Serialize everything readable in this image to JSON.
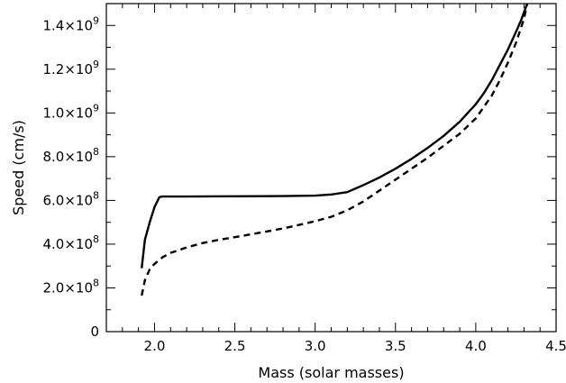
{
  "chart_data": {
    "type": "line",
    "title": "",
    "xlabel": "Mass (solar masses)",
    "ylabel": "Speed (cm/s)",
    "xlim": [
      1.7,
      4.5
    ],
    "ylim": [
      0,
      1500000000.0
    ],
    "grid": false,
    "legend": "none",
    "x_ticks": [
      {
        "value": 2.0,
        "label": "2.0"
      },
      {
        "value": 2.5,
        "label": "2.5"
      },
      {
        "value": 3.0,
        "label": "3.0"
      },
      {
        "value": 3.5,
        "label": "3.5"
      },
      {
        "value": 4.0,
        "label": "4.0"
      },
      {
        "value": 4.5,
        "label": "4.5"
      }
    ],
    "y_ticks": [
      {
        "value": 0,
        "mant": "0",
        "exp": ""
      },
      {
        "value": 200000000.0,
        "mant": "2.0×10",
        "exp": "8"
      },
      {
        "value": 400000000.0,
        "mant": "4.0×10",
        "exp": "8"
      },
      {
        "value": 600000000.0,
        "mant": "6.0×10",
        "exp": "8"
      },
      {
        "value": 800000000.0,
        "mant": "8.0×10",
        "exp": "8"
      },
      {
        "value": 1000000000.0,
        "mant": "1.0×10",
        "exp": "9"
      },
      {
        "value": 1200000000.0,
        "mant": "1.2×10",
        "exp": "9"
      },
      {
        "value": 1400000000.0,
        "mant": "1.4×10",
        "exp": "9"
      }
    ],
    "series": [
      {
        "style": "solid",
        "color": "#000000",
        "x": [
          1.92,
          1.94,
          1.97,
          2.0,
          2.03,
          2.05,
          2.2,
          2.5,
          2.8,
          3.0,
          3.1,
          3.2,
          3.3,
          3.4,
          3.5,
          3.6,
          3.7,
          3.8,
          3.9,
          4.0,
          4.05,
          4.1,
          4.15,
          4.2,
          4.25,
          4.28,
          4.3,
          4.32
        ],
        "y": [
          290000000.0,
          420000000.0,
          500000000.0,
          570000000.0,
          615000000.0,
          618000000.0,
          618000000.0,
          619000000.0,
          620000000.0,
          622000000.0,
          627000000.0,
          638000000.0,
          670000000.0,
          705000000.0,
          745000000.0,
          790000000.0,
          840000000.0,
          895000000.0,
          960000000.0,
          1040000000.0,
          1090000000.0,
          1150000000.0,
          1220000000.0,
          1290000000.0,
          1370000000.0,
          1420000000.0,
          1460000000.0,
          1500000000.0
        ]
      },
      {
        "style": "dashed",
        "color": "#000000",
        "x": [
          1.92,
          1.94,
          1.97,
          2.0,
          2.05,
          2.1,
          2.2,
          2.3,
          2.4,
          2.5,
          2.6,
          2.7,
          2.8,
          2.9,
          3.0,
          3.1,
          3.2,
          3.3,
          3.4,
          3.5,
          3.6,
          3.7,
          3.8,
          3.9,
          4.0,
          4.1,
          4.15,
          4.2,
          4.25,
          4.3,
          4.32
        ],
        "y": [
          165000000.0,
          235000000.0,
          285000000.0,
          310000000.0,
          340000000.0,
          360000000.0,
          385000000.0,
          405000000.0,
          420000000.0,
          432000000.0,
          445000000.0,
          458000000.0,
          472000000.0,
          488000000.0,
          505000000.0,
          525000000.0,
          555000000.0,
          595000000.0,
          645000000.0,
          695000000.0,
          745000000.0,
          795000000.0,
          850000000.0,
          905000000.0,
          975000000.0,
          1080000000.0,
          1150000000.0,
          1230000000.0,
          1320000000.0,
          1430000000.0,
          1500000000.0
        ]
      }
    ]
  }
}
